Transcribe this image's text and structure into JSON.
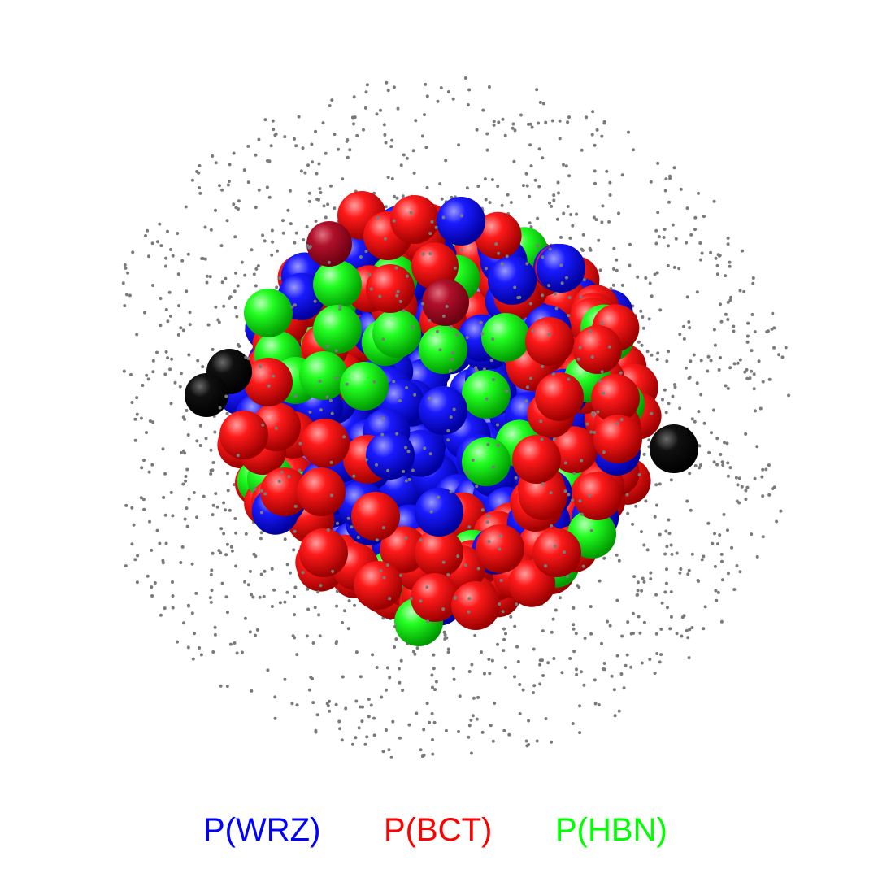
{
  "legend": {
    "items": [
      {
        "label": "P(WRZ)",
        "color": "#0000ff"
      },
      {
        "label": "P(BCT)",
        "color": "#ff0000"
      },
      {
        "label": "P(HBN)",
        "color": "#00ff00"
      }
    ]
  },
  "colors": {
    "background": "#ffffff",
    "outlier_atom": "#000000",
    "dark_red_atom": "#a00010",
    "dust_particle": "#7a7a7a"
  }
}
